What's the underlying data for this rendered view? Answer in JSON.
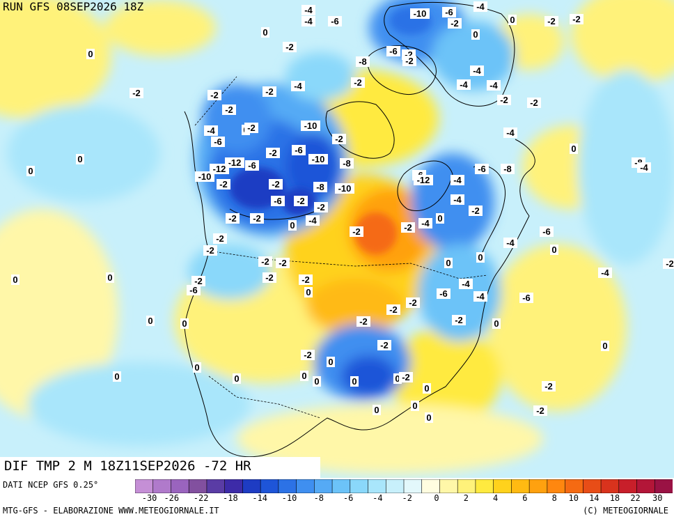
{
  "header": {
    "run": "RUN GFS 08SEP2026 18Z"
  },
  "panel": {
    "title": "DIF TMP 2 M 18Z11SEP2026 -72 HR"
  },
  "footer": {
    "source": "DATI NCEP GFS 0.25°",
    "credit_left": "MTG-GFS - ELABORAZIONE WWW.METEOGIORNALE.IT",
    "credit_right": "(C) METEOGIORNALE"
  },
  "legend": {
    "colors": [
      "#c58fd6",
      "#b07acb",
      "#9a64be",
      "#82509f",
      "#5a3ca5",
      "#3d2ba8",
      "#1e3cc3",
      "#1e55d8",
      "#2c72e6",
      "#3f8ff0",
      "#55aaf5",
      "#6cc3f8",
      "#8ad8fa",
      "#a9e6fb",
      "#c8f0fb",
      "#e3f8fb",
      "#fffde0",
      "#fff7a8",
      "#fff27a",
      "#ffea3f",
      "#ffd21c",
      "#ffba12",
      "#ffa10f",
      "#ff870f",
      "#f56a12",
      "#e84d17",
      "#d9331d",
      "#c81f2a",
      "#b31638",
      "#9a1244"
    ],
    "tick_labels": [
      "-30",
      "-26",
      "-22",
      "-18",
      "-14",
      "-10",
      "-8",
      "-6",
      "-4",
      "-2",
      "0",
      "2",
      "4",
      "6",
      "8",
      "10",
      "14",
      "18",
      "22",
      "30"
    ]
  },
  "map_labels": [
    "-4",
    "-4",
    "-6",
    "-10",
    "-6",
    "-4",
    "-2",
    "0",
    "0",
    "-2",
    "-2",
    "0",
    "-2",
    "-8",
    "-6",
    "-2",
    "-2",
    "0",
    "-2",
    "-2",
    "-2",
    "-4",
    "-2",
    "-2",
    "-4",
    "-4",
    "-4",
    "-2",
    "-2",
    "-4",
    "0",
    "-2",
    "-10",
    "-2",
    "-4",
    "-6",
    "-2",
    "-6",
    "-10",
    "-8",
    "-12",
    "-6",
    "-12",
    "-10",
    "-2",
    "-2",
    "-8",
    "-10",
    "-6",
    "-12",
    "-4",
    "-8",
    "-6",
    "-8",
    "-4",
    "0",
    "-2",
    "-2",
    "-6",
    "-2",
    "-2",
    "0",
    "-4",
    "-2",
    "-2",
    "-4",
    "0",
    "-2",
    "-4",
    "-2",
    "-2",
    "-2",
    "-2",
    "0",
    "0",
    "-4",
    "-6",
    "0",
    "-2",
    "-4",
    "-2",
    "-2",
    "0",
    "-6",
    "-2",
    "-4",
    "-6",
    "-4",
    "-6",
    "-2",
    "-2",
    "-2",
    "0",
    "-2",
    "-2",
    "-2",
    "0",
    "0",
    "0",
    "0",
    "0",
    "0",
    "0",
    "0",
    "-2",
    "0",
    "0",
    "0",
    "0",
    "0",
    "0",
    "0",
    "0",
    "0",
    "0",
    "0",
    "-2",
    "-2"
  ]
}
